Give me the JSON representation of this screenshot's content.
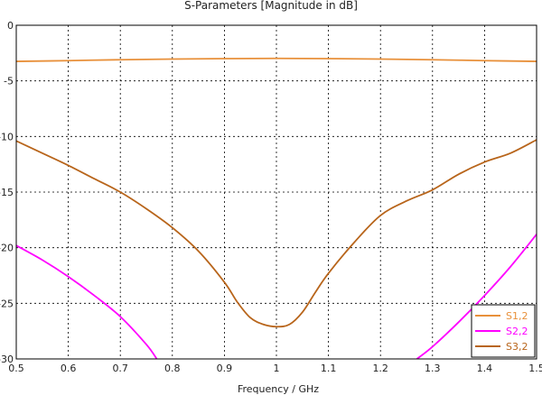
{
  "chart_data": {
    "type": "line",
    "title": "S-Parameters [Magnitude in dB]",
    "xlabel": "Frequency / GHz",
    "ylabel": "",
    "xlim": [
      0.5,
      1.5
    ],
    "ylim": [
      -30,
      0
    ],
    "grid": true,
    "legend_position": "bottom-right",
    "x_ticks": [
      "0.5",
      "0.6",
      "0.7",
      "0.8",
      "0.9",
      "1",
      "1.1",
      "1.2",
      "1.3",
      "1.4",
      "1.5"
    ],
    "y_ticks": [
      "0",
      "-5",
      "-10",
      "-15",
      "-20",
      "-25",
      "-30"
    ],
    "series": [
      {
        "name": "S1,2",
        "color": "#E8903A",
        "x": [
          0.5,
          0.6,
          0.7,
          0.8,
          0.9,
          1.0,
          1.1,
          1.2,
          1.3,
          1.4,
          1.5
        ],
        "values": [
          -3.25,
          -3.18,
          -3.1,
          -3.04,
          -3.0,
          -2.98,
          -3.0,
          -3.04,
          -3.1,
          -3.18,
          -3.25
        ]
      },
      {
        "name": "S2,2",
        "color": "#FF00FF",
        "x": [
          0.5,
          0.55,
          0.6,
          0.65,
          0.7,
          0.75,
          0.77,
          1.27,
          1.3,
          1.35,
          1.4,
          1.45,
          1.5
        ],
        "values": [
          -19.8,
          -21.1,
          -22.6,
          -24.3,
          -26.2,
          -28.7,
          -30.0,
          -30.0,
          -28.9,
          -26.7,
          -24.3,
          -21.7,
          -18.8
        ]
      },
      {
        "name": "S3,2",
        "color": "#B8651B",
        "x": [
          0.5,
          0.55,
          0.6,
          0.65,
          0.7,
          0.75,
          0.8,
          0.85,
          0.9,
          0.925,
          0.95,
          0.975,
          1.0,
          1.025,
          1.05,
          1.075,
          1.1,
          1.15,
          1.2,
          1.25,
          1.3,
          1.35,
          1.4,
          1.45,
          1.5
        ],
        "values": [
          -10.4,
          -11.5,
          -12.6,
          -13.8,
          -15.0,
          -16.5,
          -18.2,
          -20.3,
          -23.1,
          -24.9,
          -26.3,
          -26.9,
          -27.1,
          -26.9,
          -25.8,
          -24.0,
          -22.3,
          -19.5,
          -17.1,
          -15.8,
          -14.8,
          -13.4,
          -12.3,
          -11.5,
          -10.3
        ]
      }
    ]
  }
}
